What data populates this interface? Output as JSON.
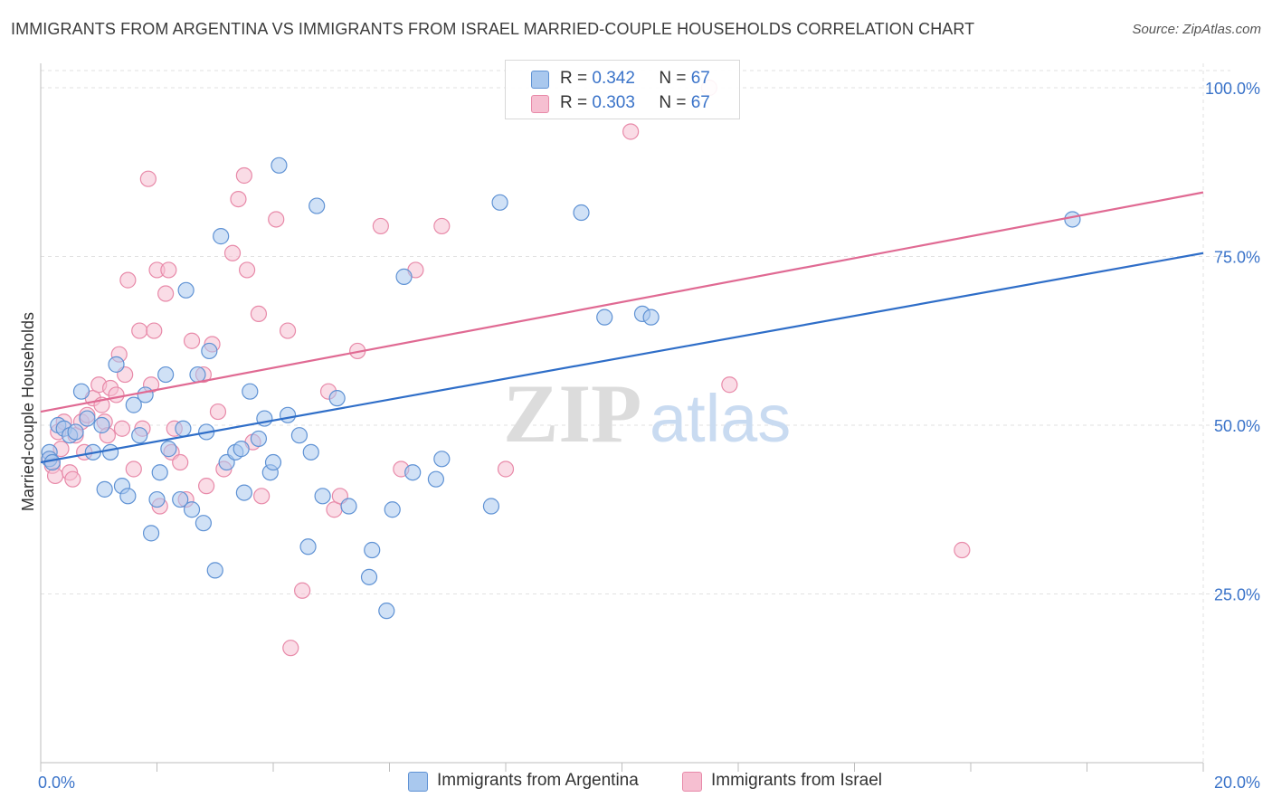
{
  "header": {
    "title": "IMMIGRANTS FROM ARGENTINA VS IMMIGRANTS FROM ISRAEL MARRIED-COUPLE HOUSEHOLDS CORRELATION CHART",
    "source": "Source: ZipAtlas.com"
  },
  "watermark": {
    "zip": "ZIP",
    "atlas": "atlas"
  },
  "legend": {
    "r_label": "R =",
    "n_label": "N =",
    "argentina": {
      "r": "0.342",
      "n": "67"
    },
    "israel": {
      "r": "0.303",
      "n": "67"
    }
  },
  "bottom_legend": {
    "argentina": "Immigrants from Argentina",
    "israel": "Immigrants from Israel"
  },
  "colors": {
    "argentina_fill": "#a9c8ee",
    "argentina_stroke": "#5f92d4",
    "argentina_line": "#2f6ec8",
    "israel_fill": "#f6bfd1",
    "israel_stroke": "#e88aa9",
    "israel_line": "#e06a93",
    "tick_label": "#3a73c9"
  },
  "chart_data": {
    "type": "scatter",
    "title": "IMMIGRANTS FROM ARGENTINA VS IMMIGRANTS FROM ISRAEL MARRIED-COUPLE HOUSEHOLDS CORRELATION CHART",
    "xlabel": "",
    "ylabel": "Married-couple Households",
    "xlim": [
      0,
      20
    ],
    "ylim": [
      0,
      100
    ],
    "x_tick_labels": [
      "0.0%",
      "20.0%"
    ],
    "y_ticks": [
      25,
      50,
      75,
      100
    ],
    "y_tick_labels": [
      "25.0%",
      "50.0%",
      "75.0%",
      "100.0%"
    ],
    "grid": true,
    "legend_position": "top-center",
    "series": [
      {
        "name": "Immigrants from Argentina",
        "r": 0.342,
        "n": 67,
        "trend": {
          "x": [
            0,
            20
          ],
          "y": [
            44.5,
            75.5
          ]
        },
        "points": [
          [
            0.15,
            46.0
          ],
          [
            0.15,
            45.0
          ],
          [
            0.2,
            44.5
          ],
          [
            0.3,
            50.0
          ],
          [
            0.4,
            49.5
          ],
          [
            0.5,
            48.5
          ],
          [
            0.6,
            49.0
          ],
          [
            0.7,
            55.0
          ],
          [
            0.8,
            51.0
          ],
          [
            0.9,
            46.0
          ],
          [
            1.05,
            50.0
          ],
          [
            1.1,
            40.5
          ],
          [
            1.2,
            46.0
          ],
          [
            1.3,
            59.0
          ],
          [
            1.4,
            41.0
          ],
          [
            1.5,
            39.5
          ],
          [
            1.6,
            53.0
          ],
          [
            1.7,
            48.5
          ],
          [
            1.8,
            54.5
          ],
          [
            1.9,
            34.0
          ],
          [
            2.0,
            39.0
          ],
          [
            2.05,
            43.0
          ],
          [
            2.15,
            57.5
          ],
          [
            2.2,
            46.5
          ],
          [
            2.4,
            39.0
          ],
          [
            2.45,
            49.5
          ],
          [
            2.5,
            70.0
          ],
          [
            2.6,
            37.5
          ],
          [
            2.7,
            57.5
          ],
          [
            2.8,
            35.5
          ],
          [
            2.85,
            49.0
          ],
          [
            2.9,
            61.0
          ],
          [
            3.0,
            28.5
          ],
          [
            3.1,
            78.0
          ],
          [
            3.2,
            44.5
          ],
          [
            3.35,
            46.0
          ],
          [
            3.45,
            46.5
          ],
          [
            3.5,
            40.0
          ],
          [
            3.6,
            55.0
          ],
          [
            3.75,
            48.0
          ],
          [
            3.85,
            51.0
          ],
          [
            3.95,
            43.0
          ],
          [
            4.0,
            44.5
          ],
          [
            4.1,
            88.5
          ],
          [
            4.25,
            51.5
          ],
          [
            4.45,
            48.5
          ],
          [
            4.6,
            32.0
          ],
          [
            4.65,
            46.0
          ],
          [
            4.75,
            82.5
          ],
          [
            4.85,
            39.5
          ],
          [
            5.1,
            54.0
          ],
          [
            5.3,
            38.0
          ],
          [
            5.65,
            27.5
          ],
          [
            5.7,
            31.5
          ],
          [
            5.95,
            22.5
          ],
          [
            6.05,
            37.5
          ],
          [
            6.25,
            72.0
          ],
          [
            6.4,
            43.0
          ],
          [
            6.8,
            42.0
          ],
          [
            6.9,
            45.0
          ],
          [
            7.75,
            38.0
          ],
          [
            7.9,
            83.0
          ],
          [
            9.3,
            81.5
          ],
          [
            9.7,
            66.0
          ],
          [
            10.35,
            66.5
          ],
          [
            10.5,
            66.0
          ],
          [
            17.75,
            80.5
          ]
        ]
      },
      {
        "name": "Immigrants from Israel",
        "r": 0.303,
        "n": 67,
        "trend": {
          "x": [
            0,
            20
          ],
          "y": [
            52.0,
            84.5
          ]
        },
        "points": [
          [
            0.15,
            45.0
          ],
          [
            0.2,
            44.0
          ],
          [
            0.25,
            42.5
          ],
          [
            0.3,
            49.0
          ],
          [
            0.4,
            50.5
          ],
          [
            0.5,
            43.0
          ],
          [
            0.55,
            42.0
          ],
          [
            0.6,
            48.5
          ],
          [
            0.7,
            50.5
          ],
          [
            0.75,
            46.0
          ],
          [
            0.8,
            51.5
          ],
          [
            0.9,
            54.0
          ],
          [
            1.0,
            56.0
          ],
          [
            1.05,
            53.0
          ],
          [
            1.1,
            50.5
          ],
          [
            1.15,
            48.5
          ],
          [
            1.2,
            55.5
          ],
          [
            1.3,
            54.5
          ],
          [
            1.35,
            60.5
          ],
          [
            1.4,
            49.5
          ],
          [
            1.45,
            57.5
          ],
          [
            1.5,
            71.5
          ],
          [
            1.6,
            43.5
          ],
          [
            1.7,
            64.0
          ],
          [
            1.75,
            49.5
          ],
          [
            1.85,
            86.5
          ],
          [
            1.9,
            56.0
          ],
          [
            1.95,
            64.0
          ],
          [
            2.0,
            73.0
          ],
          [
            2.05,
            38.0
          ],
          [
            2.15,
            69.5
          ],
          [
            2.2,
            73.0
          ],
          [
            2.25,
            46.0
          ],
          [
            2.3,
            49.5
          ],
          [
            2.4,
            44.5
          ],
          [
            2.5,
            39.0
          ],
          [
            2.6,
            62.5
          ],
          [
            2.8,
            57.5
          ],
          [
            2.85,
            41.0
          ],
          [
            2.95,
            62.0
          ],
          [
            3.05,
            52.0
          ],
          [
            3.15,
            43.5
          ],
          [
            3.3,
            75.5
          ],
          [
            3.4,
            83.5
          ],
          [
            3.5,
            87.0
          ],
          [
            3.55,
            73.0
          ],
          [
            3.65,
            47.5
          ],
          [
            3.75,
            66.5
          ],
          [
            3.8,
            39.5
          ],
          [
            4.05,
            80.5
          ],
          [
            4.25,
            64.0
          ],
          [
            4.3,
            17.0
          ],
          [
            4.5,
            25.5
          ],
          [
            4.95,
            55.0
          ],
          [
            5.05,
            37.5
          ],
          [
            5.15,
            39.5
          ],
          [
            5.45,
            61.0
          ],
          [
            5.85,
            79.5
          ],
          [
            6.2,
            43.5
          ],
          [
            6.45,
            73.0
          ],
          [
            6.9,
            79.5
          ],
          [
            8.0,
            43.5
          ],
          [
            10.15,
            93.5
          ],
          [
            11.5,
            100.0
          ],
          [
            11.85,
            56.0
          ],
          [
            15.85,
            31.5
          ],
          [
            0.35,
            46.5
          ]
        ]
      }
    ]
  }
}
